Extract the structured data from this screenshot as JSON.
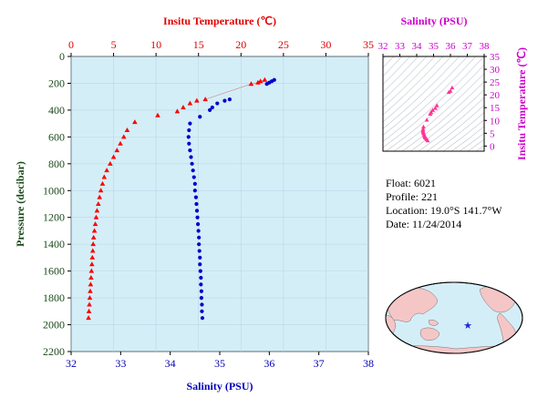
{
  "chart_data": [
    {
      "type": "scatter",
      "top_axis_title": "Insitu Temperature (℃)",
      "bottom_axis_title": "Salinity (PSU)",
      "left_axis_title": "Pressure (decibar)",
      "temperature_axis": {
        "range": [
          0,
          35
        ],
        "ticks": [
          "0",
          "5",
          "10",
          "15",
          "20",
          "25",
          "30",
          "35"
        ]
      },
      "salinity_axis": {
        "range": [
          32,
          38
        ],
        "ticks": [
          "32",
          "33",
          "34",
          "35",
          "36",
          "37",
          "38"
        ]
      },
      "pressure_axis": {
        "range": [
          0,
          2200
        ],
        "inverted": true,
        "ticks": [
          "0",
          "200",
          "400",
          "600",
          "800",
          "1000",
          "1200",
          "1400",
          "1600",
          "1800",
          "2000",
          "2200"
        ]
      },
      "background_color": "#d4eef8",
      "series": [
        {
          "color": "#ff0000",
          "marker": "triangle",
          "points": [
            [
              22.8,
              175
            ],
            [
              22.3,
              185
            ],
            [
              22.0,
              195
            ],
            [
              21.2,
              205
            ],
            [
              15.8,
              320
            ],
            [
              14.8,
              330
            ],
            [
              14.0,
              350
            ],
            [
              13.2,
              380
            ],
            [
              12.5,
              410
            ],
            [
              10.2,
              440
            ],
            [
              7.5,
              490
            ],
            [
              6.6,
              550
            ],
            [
              6.2,
              600
            ],
            [
              5.8,
              650
            ],
            [
              5.4,
              700
            ],
            [
              5.0,
              750
            ],
            [
              4.6,
              800
            ],
            [
              4.2,
              850
            ],
            [
              3.9,
              900
            ],
            [
              3.7,
              950
            ],
            [
              3.5,
              1000
            ],
            [
              3.35,
              1050
            ],
            [
              3.2,
              1100
            ],
            [
              3.05,
              1150
            ],
            [
              2.95,
              1200
            ],
            [
              2.85,
              1250
            ],
            [
              2.75,
              1300
            ],
            [
              2.65,
              1350
            ],
            [
              2.6,
              1400
            ],
            [
              2.55,
              1450
            ],
            [
              2.5,
              1500
            ],
            [
              2.45,
              1550
            ],
            [
              2.4,
              1600
            ],
            [
              2.35,
              1650
            ],
            [
              2.3,
              1700
            ],
            [
              2.25,
              1750
            ],
            [
              2.2,
              1800
            ],
            [
              2.15,
              1850
            ],
            [
              2.1,
              1900
            ],
            [
              2.05,
              1950
            ]
          ]
        },
        {
          "color": "#0000cc",
          "marker": "circle",
          "points": [
            [
              36.1,
              175
            ],
            [
              36.05,
              185
            ],
            [
              36.0,
              195
            ],
            [
              35.95,
              205
            ],
            [
              35.2,
              320
            ],
            [
              35.1,
              330
            ],
            [
              34.95,
              350
            ],
            [
              34.85,
              380
            ],
            [
              34.8,
              400
            ],
            [
              34.6,
              450
            ],
            [
              34.4,
              500
            ],
            [
              34.38,
              550
            ],
            [
              34.37,
              600
            ],
            [
              34.38,
              650
            ],
            [
              34.4,
              700
            ],
            [
              34.42,
              750
            ],
            [
              34.44,
              800
            ],
            [
              34.46,
              850
            ],
            [
              34.48,
              900
            ],
            [
              34.5,
              950
            ],
            [
              34.5,
              1000
            ],
            [
              34.52,
              1050
            ],
            [
              34.53,
              1100
            ],
            [
              34.54,
              1150
            ],
            [
              34.55,
              1200
            ],
            [
              34.56,
              1250
            ],
            [
              34.57,
              1300
            ],
            [
              34.58,
              1350
            ],
            [
              34.58,
              1400
            ],
            [
              34.59,
              1450
            ],
            [
              34.6,
              1500
            ],
            [
              34.6,
              1550
            ],
            [
              34.61,
              1600
            ],
            [
              34.62,
              1650
            ],
            [
              34.62,
              1700
            ],
            [
              34.63,
              1750
            ],
            [
              34.63,
              1800
            ],
            [
              34.64,
              1850
            ],
            [
              34.64,
              1900
            ],
            [
              34.65,
              1950
            ]
          ]
        }
      ]
    },
    {
      "type": "scatter",
      "top_axis_title": "Salinity (PSU)",
      "right_axis_title": "Insitu Temperature (℃)",
      "salinity_axis": {
        "range": [
          32,
          38
        ],
        "ticks": [
          "32",
          "33",
          "34",
          "35",
          "36",
          "37",
          "38"
        ]
      },
      "temperature_axis": {
        "range": [
          -2,
          35
        ],
        "ticks": [
          "0",
          "5",
          "10",
          "15",
          "20",
          "25",
          "30",
          "35"
        ]
      },
      "contours": "density isolines",
      "series": [
        {
          "color": "#ff3399",
          "marker": "triangle",
          "points": [
            [
              36.1,
              22.8
            ],
            [
              36.0,
              21.5
            ],
            [
              35.9,
              21.0
            ],
            [
              35.2,
              15.8
            ],
            [
              35.1,
              14.8
            ],
            [
              34.95,
              14.0
            ],
            [
              34.85,
              13.2
            ],
            [
              34.8,
              12.5
            ],
            [
              34.6,
              10.2
            ],
            [
              34.4,
              7.5
            ],
            [
              34.38,
              6.6
            ],
            [
              34.37,
              6.0
            ],
            [
              34.38,
              5.5
            ],
            [
              34.4,
              5.0
            ],
            [
              34.44,
              4.5
            ],
            [
              34.46,
              4.0
            ],
            [
              34.48,
              3.6
            ],
            [
              34.5,
              3.3
            ],
            [
              34.55,
              3.0
            ],
            [
              34.6,
              2.6
            ],
            [
              34.65,
              2.1
            ]
          ]
        }
      ]
    }
  ],
  "float_info": {
    "float": "Float:  6021",
    "profile": "Profile:  221",
    "location": "Location:  19.0°S  141.7°W",
    "date": "Date:  11/24/2014"
  },
  "map": {
    "land_color": "#f5c6c6",
    "ocean_color": "#d4eef8",
    "marker": {
      "label": "float position",
      "color": "#1a2bd6",
      "lat": -19.0,
      "lon": -141.7
    }
  }
}
